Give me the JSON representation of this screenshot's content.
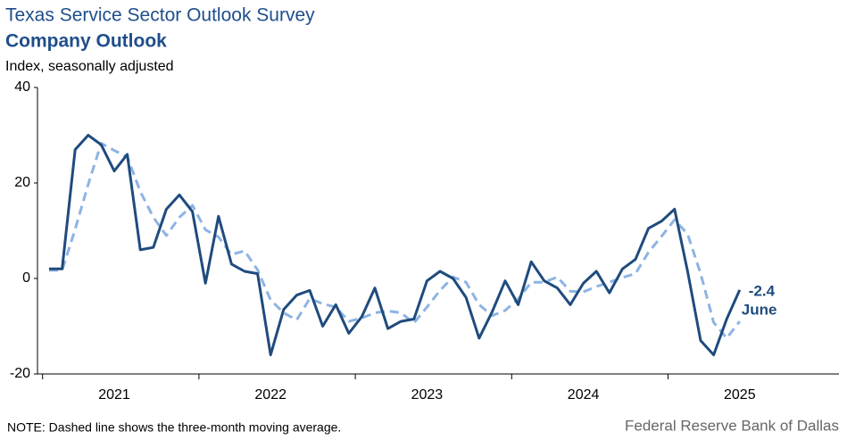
{
  "chart_data": {
    "type": "line",
    "title": "Texas Service Sector Outlook Survey",
    "subtitle": "Company Outlook",
    "y_label": "Index, seasonally adjusted",
    "note": "NOTE: Dashed line shows the three-month  moving average.",
    "source": "Federal Reserve Bank of Dallas",
    "annotation": "June",
    "categories": [
      null,
      null,
      null,
      null,
      null,
      "2021",
      null,
      null,
      null,
      null,
      null,
      null,
      null,
      null,
      null,
      null,
      null,
      "2022",
      null,
      null,
      null,
      null,
      null,
      null,
      null,
      null,
      null,
      null,
      null,
      "2023",
      null,
      null,
      null,
      null,
      null,
      null,
      null,
      null,
      null,
      null,
      null,
      "2024",
      null,
      null,
      null,
      null,
      null,
      null,
      null,
      null,
      null,
      null,
      null,
      "2025"
    ],
    "series": [
      {
        "color": "#1f4b7e",
        "dashed": false,
        "values": [
          2,
          2,
          27,
          30,
          28,
          22.5,
          26,
          6,
          6.5,
          14.5,
          17.5,
          14,
          -1,
          13,
          3,
          1.5,
          1,
          -16,
          -6.5,
          -3.5,
          -2.5,
          -10,
          -5.5,
          -11.5,
          -8,
          -2,
          -10.5,
          -9,
          -8.5,
          -0.5,
          1.5,
          0,
          -4,
          -12.5,
          -7,
          -0.5,
          -5.5,
          3.5,
          -0.5,
          -2,
          -5.5,
          -1,
          1.5,
          -3,
          2,
          4,
          10.5,
          12,
          14.5,
          1.5,
          -13,
          -16,
          -8.5,
          -2.4
        ]
      },
      {
        "color": "#8db4e2",
        "dashed": true,
        "values": [
          1.7,
          1.7,
          10.3,
          19.7,
          28.3,
          26.8,
          25.5,
          18.2,
          12.8,
          9,
          12.8,
          15.3,
          10.2,
          8.7,
          5,
          5.8,
          1.8,
          -4.5,
          -7.2,
          -8.7,
          -4.2,
          -5.3,
          -6,
          -9,
          -8.3,
          -7.2,
          -6.8,
          -7.2,
          -9.3,
          -6,
          -2.5,
          0.3,
          -0.8,
          -5.5,
          -7.8,
          -6.7,
          -4.3,
          -0.8,
          -0.8,
          0.3,
          -2.7,
          -2.8,
          -1.7,
          -0.8,
          0.2,
          1,
          5.5,
          8.8,
          12.3,
          9.3,
          1,
          -9.2,
          -12.5,
          -9
        ]
      }
    ],
    "ylim": [
      -20,
      40
    ],
    "yticks": [
      -20,
      0,
      20,
      40
    ],
    "grid": false
  }
}
